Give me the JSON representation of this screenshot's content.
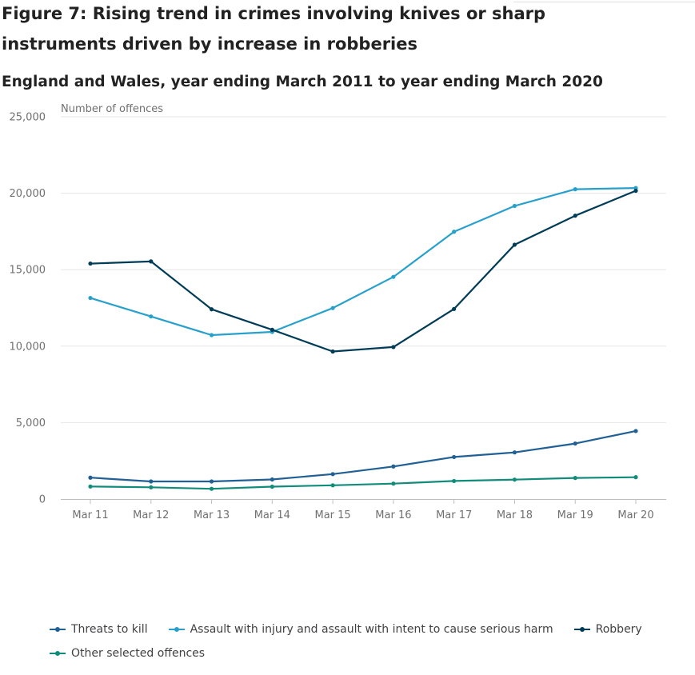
{
  "title": "Figure 7: Rising trend in crimes involving knives or sharp instruments driven by increase in robberies",
  "subtitle": "England and Wales, year ending March 2011 to year ending March 2020",
  "chart_data": {
    "type": "line",
    "ylabel": "Number of offences",
    "ylim": [
      0,
      25000
    ],
    "yticks": [
      0,
      5000,
      10000,
      15000,
      20000,
      25000
    ],
    "ytick_labels": [
      "0",
      "5,000",
      "10,000",
      "15,000",
      "20,000",
      "25,000"
    ],
    "grid": true,
    "legend_position": "bottom",
    "categories": [
      "Mar 11",
      "Mar 12",
      "Mar 13",
      "Mar 14",
      "Mar 15",
      "Mar 16",
      "Mar 17",
      "Mar 18",
      "Mar 19",
      "Mar 20"
    ],
    "series": [
      {
        "name": "Threats to kill",
        "color": "#206095",
        "values": [
          1400,
          1150,
          1150,
          1280,
          1630,
          2130,
          2750,
          3050,
          3630,
          4450
        ]
      },
      {
        "name": "Assault with injury and assault with intent to cause serious harm",
        "color": "#27a0cc",
        "values": [
          13150,
          11940,
          10720,
          10930,
          12490,
          14530,
          17480,
          19170,
          20260,
          20340
        ]
      },
      {
        "name": "Robbery",
        "color": "#003c57",
        "values": [
          15400,
          15540,
          12410,
          11070,
          9650,
          9940,
          12430,
          16630,
          18530,
          20160
        ]
      },
      {
        "name": "Other selected offences",
        "color": "#118c7b",
        "values": [
          820,
          770,
          670,
          810,
          900,
          1010,
          1180,
          1270,
          1380,
          1430
        ]
      }
    ]
  }
}
